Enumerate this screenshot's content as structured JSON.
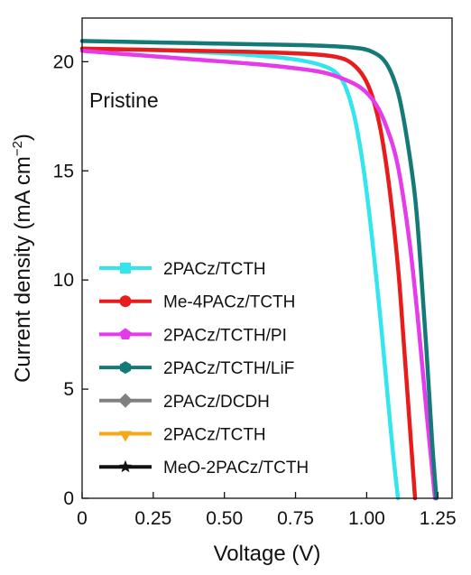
{
  "chart_data": {
    "type": "line",
    "title": "",
    "annotation": "Pristine",
    "xlabel": "Voltage (V)",
    "ylabel_main": "Current density (mA cm",
    "ylabel_sup": "−2",
    "ylabel_close": ")",
    "xlim": [
      0,
      1.3
    ],
    "ylim": [
      0,
      22
    ],
    "x_ticks": [
      0,
      0.25,
      0.5,
      0.75,
      1.0,
      1.25
    ],
    "x_tick_labels": [
      "0",
      "0.25",
      "0.50",
      "0.75",
      "1.00",
      "1.25"
    ],
    "y_ticks": [
      0,
      5,
      10,
      15,
      20
    ],
    "y_tick_labels": [
      "0",
      "5",
      "10",
      "15",
      "20"
    ],
    "grid": false,
    "legend_placement": "bottom-left",
    "series": [
      {
        "name": "2PACz/TCTH",
        "color": "#33e6ee",
        "marker": "square",
        "x": [
          0,
          0.2,
          0.4,
          0.6,
          0.75,
          0.85,
          0.9,
          0.93,
          0.96,
          0.99,
          1.02,
          1.05,
          1.07,
          1.09,
          1.11
        ],
        "y": [
          20.6,
          20.55,
          20.45,
          20.3,
          20.1,
          19.8,
          19.4,
          18.7,
          17.3,
          15.0,
          11.8,
          8.0,
          5.2,
          2.4,
          0
        ]
      },
      {
        "name": "Me-4PACz/TCTH",
        "color": "#e81c1c",
        "marker": "circle",
        "x": [
          0,
          0.2,
          0.4,
          0.6,
          0.8,
          0.9,
          0.95,
          0.99,
          1.02,
          1.05,
          1.08,
          1.11,
          1.13,
          1.15,
          1.17
        ],
        "y": [
          20.6,
          20.55,
          20.5,
          20.45,
          20.35,
          20.2,
          19.9,
          19.3,
          18.4,
          16.8,
          14.2,
          10.6,
          7.2,
          3.6,
          0
        ]
      },
      {
        "name": "2PACz/TCTH/PI",
        "color": "#e53bea",
        "marker": "pentagon",
        "x": [
          0,
          0.2,
          0.4,
          0.6,
          0.75,
          0.85,
          0.92,
          0.98,
          1.03,
          1.07,
          1.11,
          1.15,
          1.18,
          1.21,
          1.24
        ],
        "y": [
          20.5,
          20.3,
          20.1,
          19.9,
          19.7,
          19.5,
          19.2,
          18.8,
          18.1,
          17.0,
          15.2,
          11.8,
          8.2,
          4.0,
          0
        ]
      },
      {
        "name": "2PACz/TCTH/LiF",
        "color": "#137a78",
        "marker": "hexagon",
        "x": [
          0,
          0.2,
          0.4,
          0.6,
          0.8,
          0.95,
          1.02,
          1.07,
          1.11,
          1.14,
          1.17,
          1.19,
          1.21,
          1.23,
          1.245
        ],
        "y": [
          20.95,
          20.9,
          20.85,
          20.8,
          20.75,
          20.65,
          20.45,
          19.9,
          18.6,
          16.6,
          13.8,
          10.6,
          6.8,
          2.6,
          0
        ]
      },
      {
        "name": "2PACz/DCDH",
        "color": "#808080",
        "marker": "diamond",
        "x": [],
        "y": []
      },
      {
        "name": "2PACz/TCTH",
        "color": "#f5a91a",
        "marker": "triangle-down",
        "x": [],
        "y": []
      },
      {
        "name": "MeO-2PACz/TCTH",
        "color": "#111111",
        "marker": "star",
        "x": [],
        "y": []
      }
    ]
  }
}
